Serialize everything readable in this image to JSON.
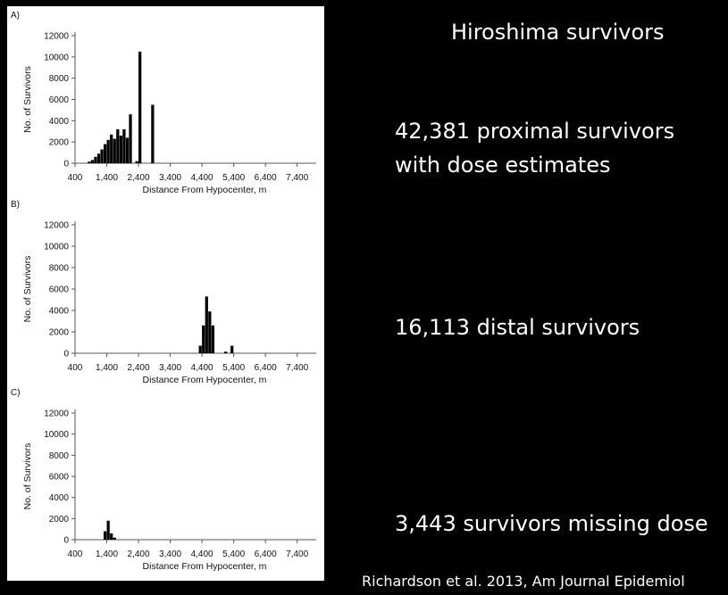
{
  "slide": {
    "title": "Hiroshima survivors",
    "stats": [
      {
        "lines": [
          "42,381 proximal survivors",
          "with dose estimates"
        ]
      },
      {
        "lines": [
          "16,113 distal survivors"
        ]
      },
      {
        "lines": [
          "3,443 survivors missing dose"
        ]
      }
    ],
    "citation": "Richardson et al. 2013, Am Journal Epidemiol"
  },
  "colors": {
    "bar": "#000000",
    "axis": "#555555",
    "background": "#000000",
    "panel": "#ffffff"
  },
  "chart_data": [
    {
      "type": "bar",
      "panel_label": "A)",
      "xlabel": "Distance From Hypocenter, m",
      "ylabel": "No. of Survivors",
      "xticks": [
        "400",
        "1,400",
        "2,400",
        "3,400",
        "4,400",
        "5,400",
        "6,400",
        "7,400"
      ],
      "yticks": [
        "0",
        "2000",
        "4000",
        "6000",
        "8000",
        "10000",
        "12000"
      ],
      "xlim": [
        400,
        8000
      ],
      "ylim": [
        0,
        12000
      ],
      "grid": false,
      "bin_width": 100,
      "bars": [
        {
          "x": 850,
          "value": 150
        },
        {
          "x": 950,
          "value": 300
        },
        {
          "x": 1050,
          "value": 600
        },
        {
          "x": 1150,
          "value": 900
        },
        {
          "x": 1250,
          "value": 1300
        },
        {
          "x": 1350,
          "value": 1800
        },
        {
          "x": 1450,
          "value": 2200
        },
        {
          "x": 1550,
          "value": 2700
        },
        {
          "x": 1650,
          "value": 2300
        },
        {
          "x": 1750,
          "value": 3200
        },
        {
          "x": 1850,
          "value": 2600
        },
        {
          "x": 1950,
          "value": 3200
        },
        {
          "x": 2050,
          "value": 2400
        },
        {
          "x": 2150,
          "value": 4600
        },
        {
          "x": 2350,
          "value": 200
        },
        {
          "x": 2450,
          "value": 10500
        },
        {
          "x": 2850,
          "value": 5500
        }
      ]
    },
    {
      "type": "bar",
      "panel_label": "B)",
      "xlabel": "Distance From Hypocenter, m",
      "ylabel": "No. of Survivors",
      "xticks": [
        "400",
        "1,400",
        "2,400",
        "3,400",
        "4,400",
        "5,400",
        "6,400",
        "7,400"
      ],
      "yticks": [
        "0",
        "2000",
        "4000",
        "6000",
        "8000",
        "10000",
        "12000"
      ],
      "xlim": [
        400,
        8000
      ],
      "ylim": [
        0,
        12000
      ],
      "grid": false,
      "bin_width": 100,
      "bars": [
        {
          "x": 4350,
          "value": 700
        },
        {
          "x": 4450,
          "value": 2600
        },
        {
          "x": 4550,
          "value": 5300
        },
        {
          "x": 4650,
          "value": 3900
        },
        {
          "x": 4750,
          "value": 2600
        },
        {
          "x": 5150,
          "value": 150
        },
        {
          "x": 5350,
          "value": 700
        }
      ]
    },
    {
      "type": "bar",
      "panel_label": "C)",
      "xlabel": "Distance From Hypocenter, m",
      "ylabel": "No. of Survivors",
      "xticks": [
        "400",
        "1,400",
        "2,400",
        "3,400",
        "4,400",
        "5,400",
        "6,400",
        "7,400"
      ],
      "yticks": [
        "0",
        "2000",
        "4000",
        "6000",
        "8000",
        "10000",
        "12000"
      ],
      "xlim": [
        400,
        8000
      ],
      "ylim": [
        0,
        12000
      ],
      "grid": false,
      "bin_width": 100,
      "bars": [
        {
          "x": 1350,
          "value": 800
        },
        {
          "x": 1450,
          "value": 1800
        },
        {
          "x": 1550,
          "value": 600
        },
        {
          "x": 1650,
          "value": 200
        }
      ]
    }
  ]
}
